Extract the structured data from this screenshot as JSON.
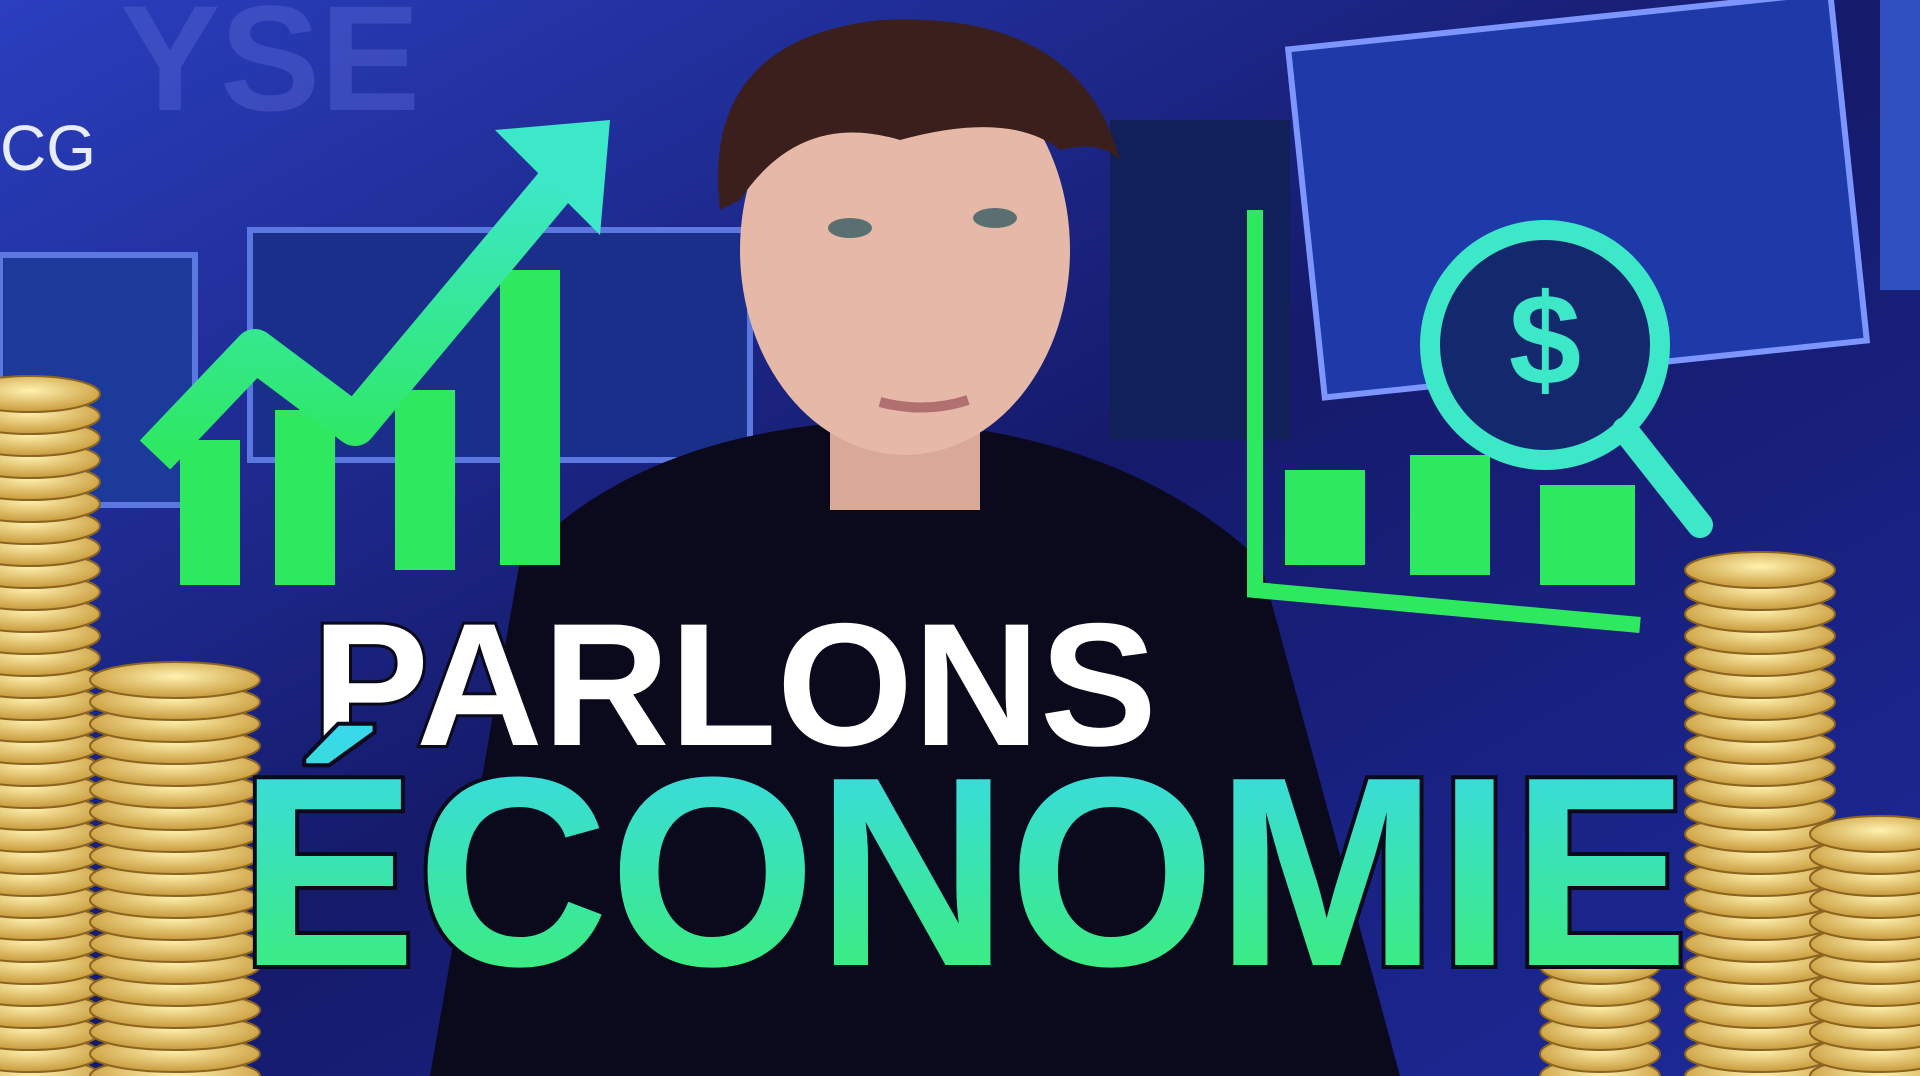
{
  "background": {
    "sign_text": "CG",
    "wall_text": "YSE"
  },
  "icon": {
    "symbol": "$"
  },
  "title": {
    "line1": "PARLONS",
    "line2": "ÉCONOMIE"
  }
}
